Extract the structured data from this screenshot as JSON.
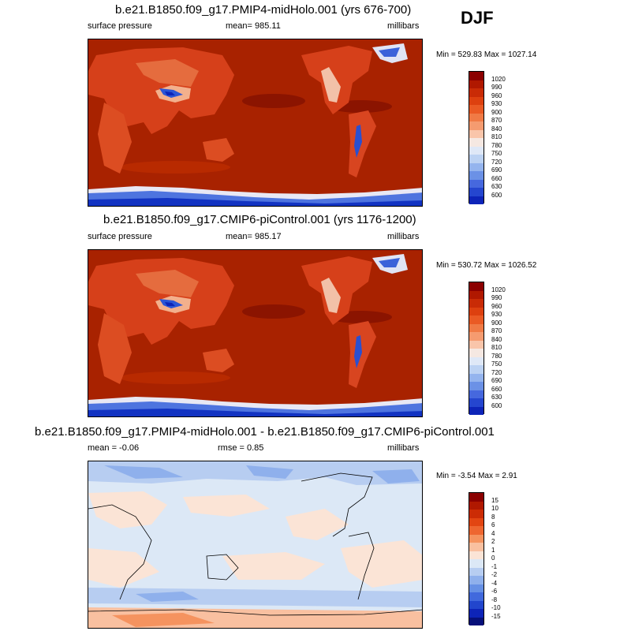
{
  "season": "DJF",
  "panels": [
    {
      "title": "b.e21.B1850.f09_g17.PMIP4-midHolo.001 (yrs 676-700)",
      "left": "surface pressure",
      "center": "mean= 985.11",
      "right": "millibars",
      "minmax": "Min = 529.83 Max = 1027.14",
      "bg": "#a82200"
    },
    {
      "title": "b.e21.B1850.f09_g17.CMIP6-piControl.001 (yrs 1176-1200)",
      "left": "surface pressure",
      "center": "mean= 985.17",
      "right": "millibars",
      "minmax": "Min = 530.72 Max = 1026.52",
      "bg": "#a82200"
    },
    {
      "title": "b.e21.B1850.f09_g17.PMIP4-midHolo.001 - b.e21.B1850.f09_g17.CMIP6-piControl.001",
      "left": "mean =  -0.06",
      "center": "rmse =   0.85",
      "right": "millibars",
      "minmax": "Min =  -3.54 Max =   2.91",
      "bg": "#dce8f6"
    }
  ],
  "colorbar_abs": {
    "labels": [
      "1020",
      "990",
      "960",
      "930",
      "900",
      "870",
      "840",
      "810",
      "780",
      "750",
      "720",
      "690",
      "660",
      "630",
      "600"
    ],
    "colors": [
      "#8b0000",
      "#b01800",
      "#c92b06",
      "#dd400f",
      "#ea5a24",
      "#f07a45",
      "#f59b70",
      "#f9c5aa",
      "#f5e8e2",
      "#dfe8f7",
      "#bcd2f3",
      "#94b4ee",
      "#6b91e6",
      "#4668de",
      "#2546cf",
      "#0d24b8"
    ]
  },
  "colorbar_diff": {
    "labels": [
      "15",
      "10",
      "8",
      "6",
      "4",
      "2",
      "1",
      "0",
      "-1",
      "-2",
      "-4",
      "-6",
      "-8",
      "-10",
      "-15"
    ],
    "colors": [
      "#8b0000",
      "#b01800",
      "#cc2c05",
      "#e24512",
      "#ee6630",
      "#f5935f",
      "#f9c0a0",
      "#fbe4d6",
      "#dce8f6",
      "#b7cdf1",
      "#8fb0ec",
      "#6690e5",
      "#4169dd",
      "#2246cd",
      "#0d24b8",
      "#06107a"
    ]
  }
}
